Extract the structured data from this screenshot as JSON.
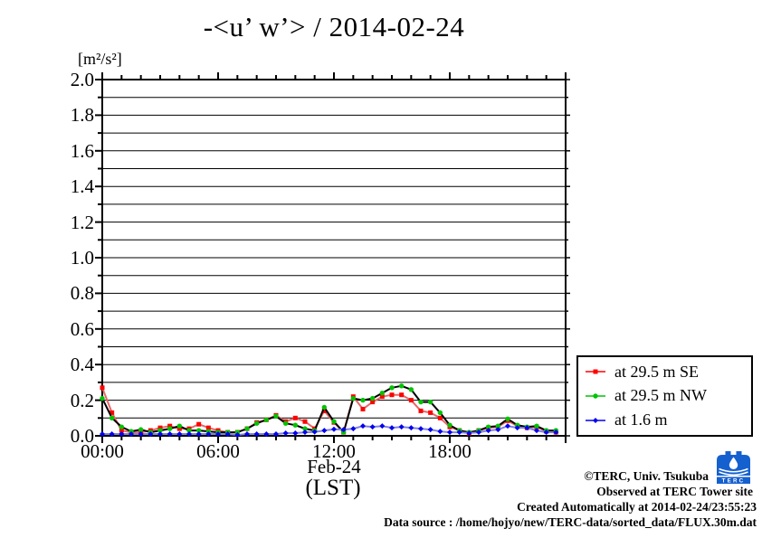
{
  "chart_data": {
    "type": "line",
    "title": "-<u’ w’> / 2014-02-24",
    "y_unit": "[m²/s²]",
    "x_date_label": "Feb-24",
    "x_tz_label": "(LST)",
    "ylim": [
      0.0,
      2.0
    ],
    "xlim_hours": [
      0,
      24
    ],
    "grid": "horizontal lines every 0.1, ticks hourly on x (major every 6 h), every 0.1 on y (major every 0.2)",
    "y_tick_labels": [
      "2.0",
      "1.8",
      "1.6",
      "1.4",
      "1.2",
      "1.0",
      "0.8",
      "0.6",
      "0.4",
      "0.2",
      "0.0"
    ],
    "x_tick_labels": [
      "00:00",
      "06:00",
      "12:00",
      "18:00"
    ],
    "x_tick_hours": [
      0,
      6,
      12,
      18
    ],
    "x_step_hours": 0.5,
    "series": [
      {
        "name": "at 29.5 m SE",
        "line_color": "#e86868",
        "marker_color": "#ff0000",
        "marker": "square",
        "values": [
          0.27,
          0.13,
          0.03,
          0.02,
          0.02,
          0.03,
          0.045,
          0.055,
          0.04,
          0.04,
          0.065,
          0.045,
          0.03,
          0.02,
          0.02,
          0.04,
          0.075,
          0.09,
          0.115,
          0.08,
          0.1,
          0.08,
          0.04,
          0.14,
          0.075,
          0.02,
          0.22,
          0.15,
          0.19,
          0.22,
          0.23,
          0.23,
          0.2,
          0.14,
          0.13,
          0.1,
          0.05,
          0.03,
          0.015,
          0.03,
          0.045,
          0.05,
          0.085,
          0.055,
          0.045,
          0.05,
          0.025,
          0.02
        ]
      },
      {
        "name": "at 29.5 m NW",
        "line_color": "#000000",
        "marker_color": "#00c400",
        "marker": "circle",
        "values": [
          0.21,
          0.1,
          0.05,
          0.025,
          0.035,
          0.02,
          0.03,
          0.04,
          0.055,
          0.03,
          0.03,
          0.025,
          0.02,
          0.02,
          0.02,
          0.04,
          0.07,
          0.09,
          0.11,
          0.07,
          0.06,
          0.04,
          0.03,
          0.16,
          0.08,
          0.02,
          0.21,
          0.2,
          0.21,
          0.24,
          0.27,
          0.28,
          0.26,
          0.19,
          0.19,
          0.13,
          0.06,
          0.03,
          0.02,
          0.03,
          0.05,
          0.055,
          0.095,
          0.06,
          0.05,
          0.055,
          0.03,
          0.03
        ]
      },
      {
        "name": "at 1.6 m",
        "line_color": "#8080e8",
        "marker_color": "#0000ee",
        "marker": "diamond",
        "values": [
          0.01,
          0.01,
          0.01,
          0.01,
          0.01,
          0.01,
          0.01,
          0.01,
          0.01,
          0.01,
          0.01,
          0.01,
          0.01,
          0.01,
          0.005,
          0.01,
          0.01,
          0.01,
          0.01,
          0.015,
          0.015,
          0.02,
          0.022,
          0.03,
          0.037,
          0.035,
          0.04,
          0.055,
          0.05,
          0.055,
          0.045,
          0.05,
          0.045,
          0.04,
          0.035,
          0.025,
          0.02,
          0.02,
          0.015,
          0.02,
          0.03,
          0.035,
          0.055,
          0.045,
          0.045,
          0.03,
          0.02,
          0.02
        ]
      }
    ],
    "legend_position": "right, outside plot, bottom"
  },
  "credits": {
    "line1": "©TERC, Univ. Tsukuba",
    "line2": "Observed at TERC Tower site",
    "line3": "Created Automatically at 2014-02-24/23:55:23",
    "line4": "Data source : /home/hojyo/new/TERC-data/sorted_data/FLUX.30m.dat"
  },
  "logo": {
    "text": "TERC",
    "color": "#1560cf"
  }
}
